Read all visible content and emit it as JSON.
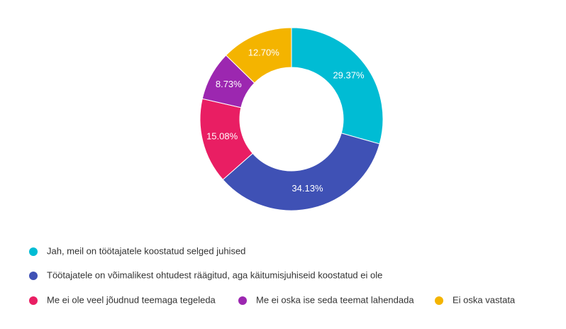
{
  "chart_data": {
    "type": "pie",
    "donut": true,
    "categories": [
      "Jah, meil on töötajatele koostatud selged juhised",
      "Töötajatele on võimalikest ohtudest räägitud, aga käitumisjuhiseid koostatud ei ole",
      "Me ei ole veel jõudnud teemaga tegeleda",
      "Me ei oska ise seda teemat lahendada",
      "Ei oska vastata"
    ],
    "values": [
      29.37,
      34.13,
      15.08,
      8.73,
      12.7
    ],
    "value_labels": [
      "29.37%",
      "34.13%",
      "15.08%",
      "8.73%",
      "12.70%"
    ],
    "colors": [
      "#00bcd4",
      "#3f51b5",
      "#e91e63",
      "#9c27b0",
      "#f4b400"
    ]
  }
}
